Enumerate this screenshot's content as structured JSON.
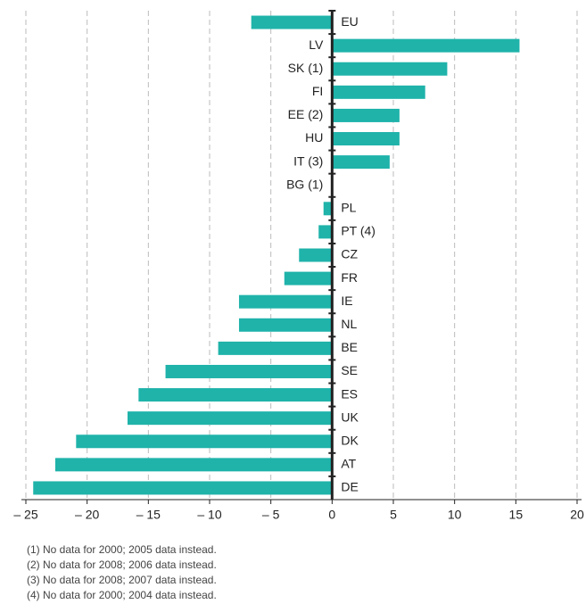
{
  "chart_data": {
    "type": "bar",
    "orientation": "horizontal",
    "categories": [
      "EU",
      "LV",
      "SK (1)",
      "FI",
      "EE (2)",
      "HU",
      "IT (3)",
      "BG (1)",
      "PL",
      "PT (4)",
      "CZ",
      "FR",
      "IE",
      "NL",
      "BE",
      "SE",
      "ES",
      "UK",
      "DK",
      "AT",
      "DE"
    ],
    "values": [
      -6.6,
      15.3,
      9.4,
      7.6,
      5.5,
      5.5,
      4.7,
      null,
      -0.7,
      -1.1,
      -2.7,
      -3.9,
      -7.6,
      -7.6,
      -9.3,
      -13.6,
      -15.8,
      -16.7,
      -20.9,
      -22.6,
      -24.4
    ],
    "color": "#1fb3aa",
    "xlim": [
      -25,
      20
    ],
    "xticks": [
      {
        "value": -25,
        "label": "– 25"
      },
      {
        "value": -20,
        "label": "– 20"
      },
      {
        "value": -15,
        "label": "– 15"
      },
      {
        "value": -10,
        "label": "– 10"
      },
      {
        "value": -5,
        "label": "– 5"
      },
      0,
      5,
      10,
      15,
      20
    ],
    "grid": true,
    "footnotes": [
      "(1) No data for 2000; 2005 data instead.",
      "(2) No data for 2008; 2006 data instead.",
      "(3) No data for 2008; 2007 data instead.",
      "(4) No data for 2000; 2004 data instead."
    ]
  }
}
